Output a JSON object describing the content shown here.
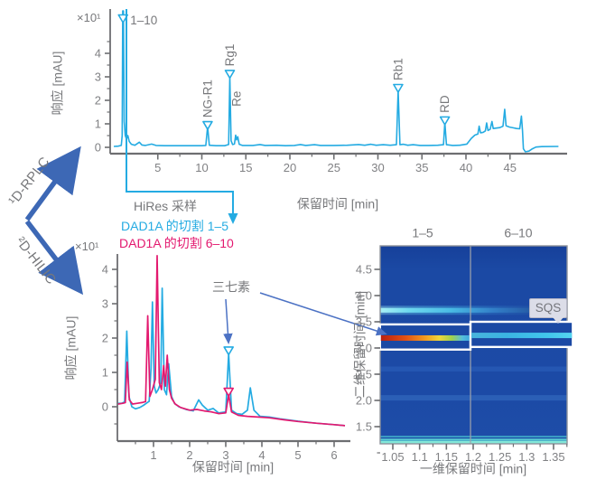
{
  "colors": {
    "cyan": "#24abe2",
    "magenta": "#e3196f",
    "flow_arrow_blue": "#3d68b5",
    "annot_arrow_blue": "#4c72c4",
    "gray_text": "#77787b",
    "axis_gray": "#6d6e71",
    "heatmap_bg": "#1b49a4"
  },
  "labels": {
    "flow_d1": "¹D-RPLC",
    "flow_d2": "²D-HILIC",
    "hires": "HiRes 采样",
    "cut_1_5": "DAD1A 的切割 1–5",
    "cut_6_10": "DAD1A 的切割 6–10",
    "sanchi": "三七素",
    "sqs": "SQS",
    "scale_top": "×10¹",
    "scale_bottom": "×10¹"
  },
  "chart_data": [
    {
      "id": "top-1d-rplc-chromatogram",
      "type": "line",
      "xlabel": "保留时间 [min]",
      "ylabel": "响应 [mAU]",
      "scale_label": "×10¹",
      "xlim": [
        0,
        51
      ],
      "ylim": [
        -0.4,
        5.9
      ],
      "xticks": [
        5,
        10,
        15,
        20,
        25,
        30,
        35,
        40,
        45
      ],
      "yticks": [
        0,
        1,
        2,
        3,
        4
      ],
      "series": [
        {
          "name": "DAD1A",
          "color": "cyan",
          "points": [
            [
              0,
              0.04
            ],
            [
              0.5,
              0.05
            ],
            [
              0.85,
              0.08
            ],
            [
              0.95,
              0.5
            ],
            [
              1.02,
              5.9
            ],
            [
              1.1,
              5.9
            ],
            [
              1.18,
              1.1
            ],
            [
              1.3,
              0.5
            ],
            [
              1.45,
              0.35
            ],
            [
              1.6,
              0.5
            ],
            [
              1.75,
              0.25
            ],
            [
              2.0,
              0.13
            ],
            [
              2.4,
              0.09
            ],
            [
              2.9,
              0.22
            ],
            [
              3.2,
              0.1
            ],
            [
              3.6,
              0.08
            ],
            [
              4.3,
              0.14
            ],
            [
              4.8,
              0.08
            ],
            [
              5.8,
              0.07
            ],
            [
              7,
              0.07
            ],
            [
              8.5,
              0.07
            ],
            [
              10,
              0.07
            ],
            [
              10.45,
              0.08
            ],
            [
              10.66,
              0.88
            ],
            [
              10.85,
              0.09
            ],
            [
              11.6,
              0.07
            ],
            [
              12.6,
              0.07
            ],
            [
              13.05,
              0.12
            ],
            [
              13.18,
              3.02
            ],
            [
              13.32,
              0.28
            ],
            [
              13.5,
              0.12
            ],
            [
              13.7,
              0.14
            ],
            [
              13.85,
              0.52
            ],
            [
              13.95,
              0.32
            ],
            [
              14.08,
              0.45
            ],
            [
              14.25,
              0.13
            ],
            [
              14.6,
              0.08
            ],
            [
              15.8,
              0.08
            ],
            [
              16.6,
              0.12
            ],
            [
              17.2,
              0.08
            ],
            [
              18.5,
              0.09
            ],
            [
              19.5,
              0.07
            ],
            [
              20.5,
              0.08
            ],
            [
              21.2,
              0.12
            ],
            [
              21.8,
              0.08
            ],
            [
              22.8,
              0.11
            ],
            [
              23.5,
              0.08
            ],
            [
              25,
              0.08
            ],
            [
              26.5,
              0.09
            ],
            [
              27.8,
              0.12
            ],
            [
              28.5,
              0.09
            ],
            [
              29.2,
              0.13
            ],
            [
              29.8,
              0.09
            ],
            [
              30.6,
              0.11
            ],
            [
              31.4,
              0.09
            ],
            [
              32.1,
              0.11
            ],
            [
              32.3,
              2.42
            ],
            [
              32.5,
              0.11
            ],
            [
              32.9,
              0.13
            ],
            [
              33.4,
              0.09
            ],
            [
              34,
              0.11
            ],
            [
              34.8,
              0.08
            ],
            [
              35.8,
              0.08
            ],
            [
              36.8,
              0.09
            ],
            [
              37.45,
              0.11
            ],
            [
              37.6,
              1.06
            ],
            [
              37.78,
              0.11
            ],
            [
              38.5,
              0.08
            ],
            [
              39.3,
              0.09
            ],
            [
              40.1,
              0.14
            ],
            [
              40.6,
              0.38
            ],
            [
              41.0,
              0.52
            ],
            [
              41.35,
              0.57
            ],
            [
              41.5,
              0.9
            ],
            [
              41.65,
              0.62
            ],
            [
              41.95,
              0.64
            ],
            [
              42.2,
              0.7
            ],
            [
              42.35,
              1.04
            ],
            [
              42.5,
              0.72
            ],
            [
              42.75,
              0.77
            ],
            [
              42.95,
              1.1
            ],
            [
              43.1,
              0.8
            ],
            [
              43.45,
              0.82
            ],
            [
              43.85,
              0.84
            ],
            [
              44.2,
              0.9
            ],
            [
              44.4,
              1.62
            ],
            [
              44.55,
              0.92
            ],
            [
              44.95,
              0.86
            ],
            [
              45.35,
              0.83
            ],
            [
              45.75,
              0.8
            ],
            [
              46.1,
              0.79
            ],
            [
              46.3,
              1.33
            ],
            [
              46.42,
              0.72
            ],
            [
              46.52,
              -0.06
            ],
            [
              46.75,
              -0.19
            ],
            [
              47.15,
              -0.16
            ],
            [
              47.55,
              -0.06
            ],
            [
              47.95,
              0.01
            ],
            [
              48.6,
              0.03
            ],
            [
              50.5,
              0.04
            ]
          ]
        }
      ],
      "peaks": [
        {
          "label": "1–10",
          "t": 1.05,
          "v": 5.5,
          "horiz": true
        },
        {
          "label": "NG-R1",
          "t": 10.66,
          "v": 0.92,
          "ldy": -9
        },
        {
          "label": "Rg1",
          "t": 13.18,
          "v": 3.1,
          "ldy": -9
        },
        {
          "label": "Re",
          "t": 13.95,
          "v": 0.58,
          "marker": false,
          "ldy": -30
        },
        {
          "label": "Rb1",
          "t": 32.3,
          "v": 2.5,
          "ldy": -9
        },
        {
          "label": "RD",
          "t": 37.6,
          "v": 1.12,
          "ldy": -9
        }
      ]
    },
    {
      "id": "bottom-2d-hilic-chromatogram",
      "type": "line",
      "xlabel": "保留时间 [min]",
      "ylabel": "响应 [mAU]",
      "scale_label": "×10¹",
      "xlim": [
        0,
        6.4
      ],
      "ylim": [
        -1,
        4.4
      ],
      "xticks": [
        1,
        2,
        3,
        4,
        5,
        6
      ],
      "yticks": [
        0,
        1,
        2,
        3,
        4
      ],
      "series": [
        {
          "name": "DAD1A 的切割 1–5",
          "color": "cyan",
          "marker_at": [
            3.08,
            1.62
          ],
          "points": [
            [
              0.02,
              0.1
            ],
            [
              0.12,
              0.1
            ],
            [
              0.2,
              0.14
            ],
            [
              0.26,
              2.2
            ],
            [
              0.32,
              0.3
            ],
            [
              0.4,
              0.0
            ],
            [
              0.5,
              -0.06
            ],
            [
              0.62,
              -0.02
            ],
            [
              0.72,
              0.04
            ],
            [
              0.8,
              0.1
            ],
            [
              0.88,
              0.16
            ],
            [
              0.93,
              1.1
            ],
            [
              0.97,
              3.05
            ],
            [
              1.02,
              0.6
            ],
            [
              1.07,
              0.4
            ],
            [
              1.13,
              0.5
            ],
            [
              1.2,
              0.7
            ],
            [
              1.24,
              3.45
            ],
            [
              1.3,
              0.5
            ],
            [
              1.36,
              0.35
            ],
            [
              1.42,
              1.25
            ],
            [
              1.5,
              0.3
            ],
            [
              1.58,
              0.1
            ],
            [
              1.7,
              0.0
            ],
            [
              1.9,
              -0.08
            ],
            [
              2.1,
              -0.12
            ],
            [
              2.25,
              0.2
            ],
            [
              2.35,
              0.05
            ],
            [
              2.5,
              -0.1
            ],
            [
              2.65,
              -0.05
            ],
            [
              2.8,
              -0.18
            ],
            [
              3.0,
              -0.15
            ],
            [
              3.08,
              1.55
            ],
            [
              3.16,
              -0.1
            ],
            [
              3.3,
              -0.2
            ],
            [
              3.45,
              -0.22
            ],
            [
              3.6,
              -0.1
            ],
            [
              3.68,
              0.55
            ],
            [
              3.78,
              -0.1
            ],
            [
              3.95,
              -0.28
            ],
            [
              4.2,
              -0.3
            ],
            [
              4.5,
              -0.35
            ],
            [
              5.0,
              -0.42
            ],
            [
              5.5,
              -0.48
            ],
            [
              6.0,
              -0.52
            ],
            [
              6.3,
              -0.55
            ]
          ]
        },
        {
          "name": "DAD1A 的切割 6–10",
          "color": "magenta",
          "marker_at": [
            3.08,
            0.42
          ],
          "points": [
            [
              0.02,
              0.08
            ],
            [
              0.15,
              0.1
            ],
            [
              0.22,
              0.12
            ],
            [
              0.27,
              1.3
            ],
            [
              0.33,
              0.2
            ],
            [
              0.42,
              0.08
            ],
            [
              0.55,
              0.1
            ],
            [
              0.68,
              0.12
            ],
            [
              0.78,
              0.15
            ],
            [
              0.84,
              2.65
            ],
            [
              0.9,
              0.3
            ],
            [
              0.97,
              0.5
            ],
            [
              1.05,
              0.8
            ],
            [
              1.1,
              4.4
            ],
            [
              1.16,
              0.7
            ],
            [
              1.22,
              0.5
            ],
            [
              1.28,
              1.2
            ],
            [
              1.33,
              0.6
            ],
            [
              1.38,
              1.5
            ],
            [
              1.44,
              0.5
            ],
            [
              1.5,
              0.25
            ],
            [
              1.6,
              0.08
            ],
            [
              1.75,
              -0.02
            ],
            [
              2.0,
              -0.1
            ],
            [
              2.2,
              -0.08
            ],
            [
              2.4,
              -0.12
            ],
            [
              2.6,
              -0.15
            ],
            [
              2.8,
              -0.2
            ],
            [
              3.0,
              -0.18
            ],
            [
              3.08,
              0.35
            ],
            [
              3.16,
              -0.15
            ],
            [
              3.35,
              -0.25
            ],
            [
              3.6,
              -0.28
            ],
            [
              3.9,
              -0.3
            ],
            [
              4.2,
              -0.32
            ],
            [
              4.6,
              -0.38
            ],
            [
              5.0,
              -0.43
            ],
            [
              5.5,
              -0.48
            ],
            [
              6.0,
              -0.52
            ],
            [
              6.3,
              -0.55
            ]
          ]
        }
      ],
      "annotation_peak": "三七素"
    },
    {
      "id": "heatmap-2d-plot",
      "type": "heatmap",
      "xlabel": "一维保留时间 [min]",
      "ylabel": "二维保留时间 [min]",
      "col_labels": [
        "1–5",
        "6–10"
      ],
      "xticks": [
        "1.05",
        "1.1",
        "1.15",
        "1.2",
        "1.25",
        "1.3",
        "1.35"
      ],
      "yticks": [
        "4.5",
        "4.0",
        "3.5",
        "3.0",
        "2.5",
        "2.0",
        "1.5"
      ],
      "xlim": [
        1.026,
        1.375
      ],
      "ylim": [
        1.17,
        4.95
      ],
      "divider_x": 1.195,
      "bands": [
        {
          "y": 3.72,
          "kind": "fade"
        },
        {
          "y": 2.6,
          "kind": "flat",
          "color": "#2e63be",
          "h": 5.5,
          "opacity": 0.55
        },
        {
          "y": 2.05,
          "kind": "flat",
          "color": "#3a73c6",
          "h": 6,
          "opacity": 0.5
        },
        {
          "y": 1.31,
          "kind": "flat",
          "color": "#3faac8",
          "h": 2,
          "opacity": 0.85
        },
        {
          "y": 1.25,
          "kind": "flat",
          "color": "#5ed4d4",
          "h": 2.4,
          "opacity": 0.95
        },
        {
          "y": 1.2,
          "kind": "flat",
          "color": "#83e8d9",
          "h": 3,
          "opacity": 1
        }
      ],
      "highlight_boxes": [
        {
          "x1": 1.026,
          "x2": 1.195,
          "y1": 2.97,
          "y2": 3.45,
          "band_y": 3.19,
          "gradient": "hot"
        },
        {
          "x1": 1.195,
          "x2": 1.386,
          "y1": 3.02,
          "y2": 3.5,
          "band_y": 3.24,
          "gradient": "cool"
        }
      ],
      "annotation": "SQS"
    }
  ]
}
